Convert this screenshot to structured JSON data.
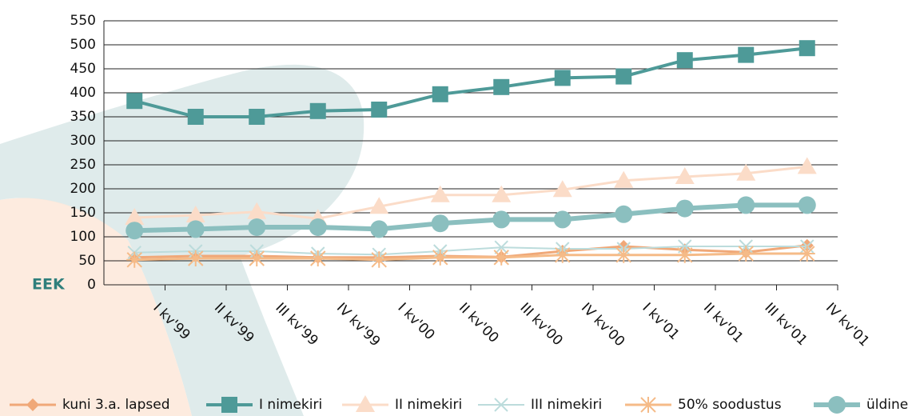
{
  "chart_data": {
    "type": "line",
    "y_label": "EEK",
    "categories": [
      "I kv'99",
      "II kv'99",
      "III kv'99",
      "IV kv'99",
      "I kv'00",
      "II kv'00",
      "III kv'00",
      "IV kv'00",
      "I kv'01",
      "II kv'01",
      "III kv'01",
      "IV kv'01"
    ],
    "series": [
      {
        "name": "kuni 3.a. lapsed",
        "color": "#f0a878",
        "marker": "diamond",
        "values": [
          57,
          60,
          60,
          57,
          57,
          60,
          58,
          70,
          80,
          73,
          68,
          82
        ]
      },
      {
        "name": "I nimekiri",
        "color": "#4e9a98",
        "marker": "square",
        "values": [
          383,
          350,
          350,
          362,
          365,
          397,
          412,
          431,
          434,
          468,
          479,
          493
        ]
      },
      {
        "name": "II nimekiri",
        "color": "#fbdcc8",
        "marker": "triangle",
        "values": [
          140,
          145,
          152,
          138,
          163,
          187,
          187,
          198,
          217,
          225,
          232,
          246
        ]
      },
      {
        "name": "III nimekiri",
        "color": "#bcdcdc",
        "marker": "x",
        "values": [
          67,
          70,
          70,
          65,
          63,
          70,
          78,
          75,
          75,
          80,
          80,
          80
        ]
      },
      {
        "name": "50% soodustus",
        "color": "#f5bb88",
        "marker": "asterisk",
        "values": [
          52,
          55,
          55,
          55,
          52,
          57,
          57,
          62,
          62,
          62,
          65,
          65
        ]
      },
      {
        "name": "üldine",
        "color": "#8bbfbf",
        "marker": "circle",
        "values": [
          113,
          116,
          120,
          120,
          116,
          128,
          136,
          136,
          147,
          159,
          166,
          166
        ]
      }
    ],
    "ylim": [
      0,
      550
    ],
    "yticks": [
      0,
      50,
      100,
      150,
      200,
      250,
      300,
      350,
      400,
      450,
      500,
      550
    ],
    "grid": true
  }
}
